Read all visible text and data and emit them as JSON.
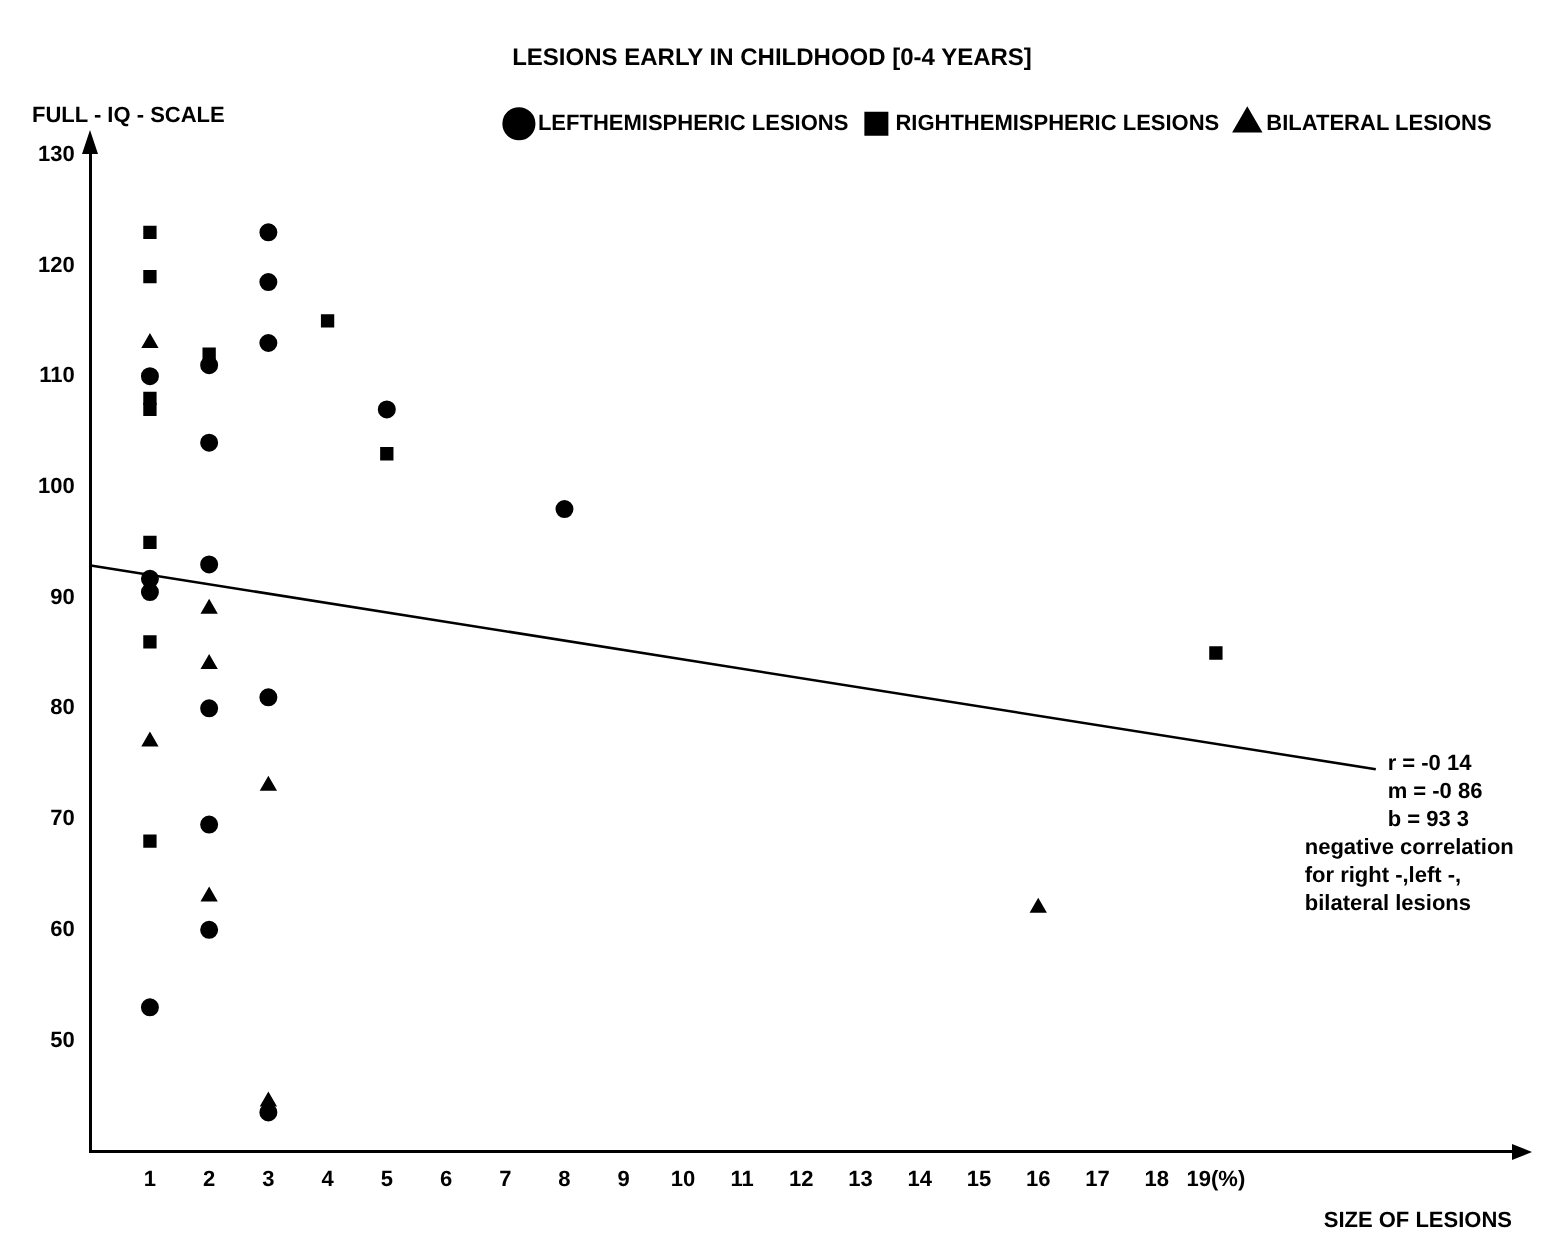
{
  "chart_data": {
    "type": "scatter",
    "title": "LESIONS EARLY IN CHILDHOOD [0-4 YEARS]",
    "xlabel": "SIZE OF LESIONS",
    "ylabel": "FULL - IQ - SCALE",
    "xlim": [
      0,
      24
    ],
    "xticks": [
      1,
      2,
      3,
      4,
      5,
      6,
      7,
      8,
      9,
      10,
      11,
      12,
      13,
      14,
      15,
      16,
      17,
      18,
      {
        "value": 19,
        "label": "19(%)"
      }
    ],
    "ylim": [
      40,
      130
    ],
    "yticks": [
      50,
      60,
      70,
      80,
      90,
      100,
      110,
      120,
      130
    ],
    "grid": false,
    "legend": "top right",
    "series": [
      {
        "name": "LEFTHEMISPHERIC LESIONS",
        "color": "#000000",
        "marker": "circle",
        "x": [
          1,
          1,
          1,
          1,
          2,
          2,
          2,
          2,
          2,
          2,
          3,
          3,
          3,
          3,
          3,
          5,
          8
        ],
        "values": [
          110,
          91.7,
          90.5,
          53,
          111,
          104,
          93,
          80,
          69.5,
          60,
          123,
          118.5,
          113,
          81,
          43.5,
          107,
          98
        ]
      },
      {
        "name": "RIGHTHEMISPHERIC LESIONS",
        "color": "#000000",
        "marker": "square",
        "x": [
          1,
          1,
          1,
          1,
          1,
          1,
          1,
          2,
          4,
          5,
          19
        ],
        "values": [
          123,
          119,
          108,
          107,
          95,
          86,
          68,
          112,
          115,
          103,
          85
        ]
      },
      {
        "name": "BILATERAL LESIONS",
        "color": "#000000",
        "marker": "triangle",
        "x": [
          1,
          1,
          2,
          2,
          2,
          3,
          3,
          16
        ],
        "values": [
          113,
          77,
          89,
          84,
          63,
          73,
          44.5,
          62
        ]
      },
      {
        "type": "line",
        "color": "#000000",
        "marker": "none",
        "line_style": "solid",
        "x": [
          0,
          21.7
        ],
        "values": [
          92.9,
          74.5
        ]
      }
    ],
    "annotations": [
      "r = -0 14",
      "m = -0 86",
      "b = 93 3",
      "negative correlation",
      "for right -,left -,",
      "bilateral lesions"
    ]
  }
}
